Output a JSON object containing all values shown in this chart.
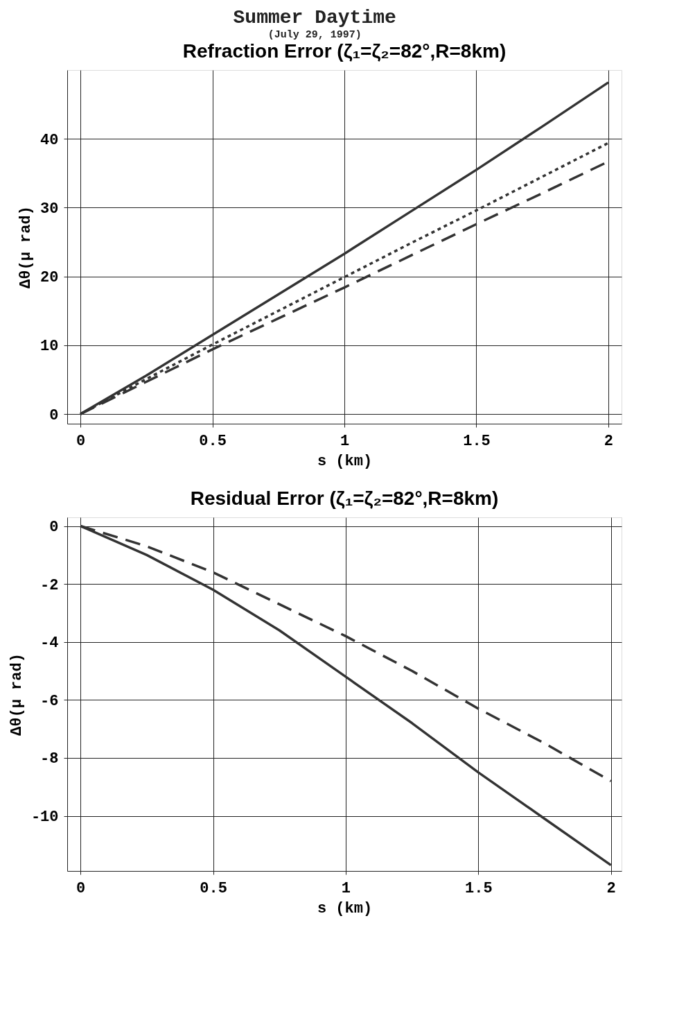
{
  "chart_data": [
    {
      "type": "line",
      "title": "Refraction Error (ζ₁=ζ₂=82°,R=8km)",
      "annotations": [
        "Summer  Daytime",
        "(July 29, 1997)"
      ],
      "xlabel": "s  (km)",
      "ylabel": "Δθ(μ rad)",
      "x": [
        0,
        0.25,
        0.5,
        0.75,
        1,
        1.25,
        1.5,
        1.75,
        2
      ],
      "xlim": [
        -0.05,
        2.05
      ],
      "xticks": [
        0,
        0.5,
        1,
        1.5,
        2
      ],
      "ylim": [
        -1.4,
        50
      ],
      "yticks": [
        0,
        10,
        20,
        30,
        40
      ],
      "grid": true,
      "marker": "none",
      "series": [
        {
          "color": "#333333",
          "line_style": "solid",
          "values": [
            0,
            5.6,
            11.5,
            17.4,
            23.3,
            29.4,
            35.5,
            41.8,
            48.2
          ]
        },
        {
          "color": "#333333",
          "line_style": "dotted",
          "values": [
            0,
            5.1,
            10.1,
            15,
            19.9,
            24.8,
            29.6,
            34.5,
            39.4
          ]
        },
        {
          "color": "#333333",
          "line_style": "dashed",
          "values": [
            0,
            4.7,
            9.4,
            13.9,
            18.4,
            23,
            27.6,
            32.1,
            36.7
          ]
        }
      ]
    },
    {
      "type": "line",
      "title": "Residual Error (ζ₁=ζ₂=82°,R=8km)",
      "xlabel": "s  (km)",
      "ylabel": "Δθ(μ rad)",
      "x": [
        0,
        0.25,
        0.5,
        0.75,
        1,
        1.25,
        1.5,
        1.75,
        2
      ],
      "xlim": [
        -0.05,
        2.04
      ],
      "xticks": [
        0,
        0.5,
        1,
        1.5,
        2
      ],
      "ylim": [
        -11.9,
        0.3
      ],
      "yticks": [
        0,
        -2,
        -4,
        -6,
        -8,
        -10
      ],
      "grid": true,
      "marker": "none",
      "series": [
        {
          "color": "#333333",
          "line_style": "solid",
          "values": [
            0,
            -1,
            -2.2,
            -3.6,
            -5.2,
            -6.8,
            -8.5,
            -10.1,
            -11.7
          ]
        },
        {
          "color": "#333333",
          "line_style": "dashed",
          "values": [
            0,
            -0.7,
            -1.6,
            -2.7,
            -3.8,
            -5,
            -6.3,
            -7.5,
            -8.8
          ]
        }
      ]
    }
  ]
}
